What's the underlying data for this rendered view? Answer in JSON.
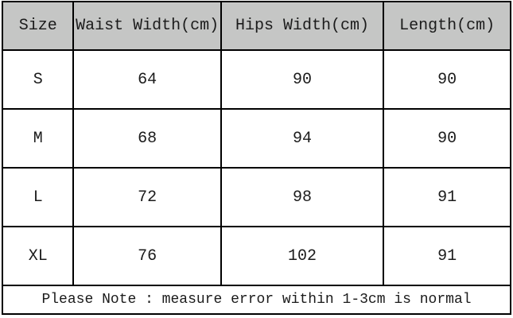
{
  "table": {
    "headers": [
      "Size",
      "Waist Width(cm)",
      "Hips Width(cm)",
      "Length(cm)"
    ],
    "rows": [
      [
        "S",
        "64",
        "90",
        "90"
      ],
      [
        "M",
        "68",
        "94",
        "90"
      ],
      [
        "L",
        "72",
        "98",
        "91"
      ],
      [
        "XL",
        "76",
        "102",
        "91"
      ]
    ],
    "note": "Please Note : measure error within 1-3cm is normal"
  },
  "colors": {
    "header_bg": "#c5c6c5",
    "border": "#000000",
    "row_bg": "#ffffff",
    "text": "#1b1b1b"
  }
}
